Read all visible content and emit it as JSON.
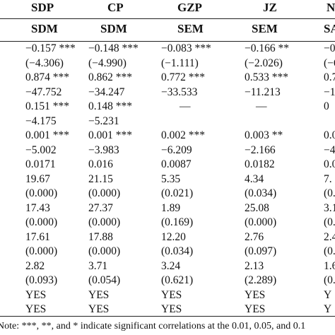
{
  "columns": [
    "SDP",
    "CP",
    "GZP",
    "JZ",
    "N"
  ],
  "models": [
    "SDM",
    "SDM",
    "SEM",
    "SEM",
    "SA"
  ],
  "rows": [
    [
      "−0.157 ***",
      "−0.148 ***",
      "−0.083 ***",
      "−0.166 **",
      "−0.2"
    ],
    [
      "(−4.306)",
      "(−4.990)",
      "(−1.111)",
      "(−2.026)",
      "(−6"
    ],
    [
      "0.874 ***",
      "0.862 ***",
      "0.772 ***",
      "0.533 ***",
      "0.77"
    ],
    [
      "−47.752",
      "−34.247",
      "−33.533",
      "−11.213",
      "−18"
    ],
    [
      "0.151 ***",
      "0.148 ***",
      "—",
      "—",
      "0"
    ],
    [
      "−4.175",
      "−5.231",
      "",
      "",
      ""
    ],
    [
      "0.001 ***",
      "0.001 ***",
      "0.002 ***",
      "0.003 **",
      "0.0"
    ],
    [
      "−5.002",
      "−3.983",
      "−6.209",
      "−2.166",
      "−4."
    ],
    [
      "0.0171",
      "0.016",
      "0.0087",
      "0.0182",
      "0.0"
    ],
    [
      "19.67",
      "21.15",
      "5.35",
      "4.34",
      "7."
    ],
    [
      "(0.000)",
      "(0.000)",
      "(0.021)",
      "(0.034)",
      "(0.0"
    ],
    [
      "17.43",
      "27.37",
      "1.89",
      "25.08",
      "3.1"
    ],
    [
      "(0.000)",
      "(0.000)",
      "(0.169)",
      "(0.000)",
      "(0.0"
    ],
    [
      "17.61",
      "17.88",
      "12.20",
      "2.76",
      "2.4"
    ],
    [
      "(0.000)",
      "(0.000)",
      "(0.034)",
      "(0.097)",
      "(0.1"
    ],
    [
      "2.82",
      "3.71",
      "3.24",
      "2.13",
      "1.6"
    ],
    [
      "(0.093)",
      "(0.054)",
      "(0.621)",
      "(2.289)",
      "(0.1"
    ],
    [
      "YES",
      "YES",
      "YES",
      "YES",
      "Y"
    ],
    [
      "YES",
      "YES",
      "YES",
      "YES",
      "Y"
    ]
  ],
  "note": "Note: ***, **, and * indicate significant correlations at the 0.01, 0.05, and 0.1"
}
